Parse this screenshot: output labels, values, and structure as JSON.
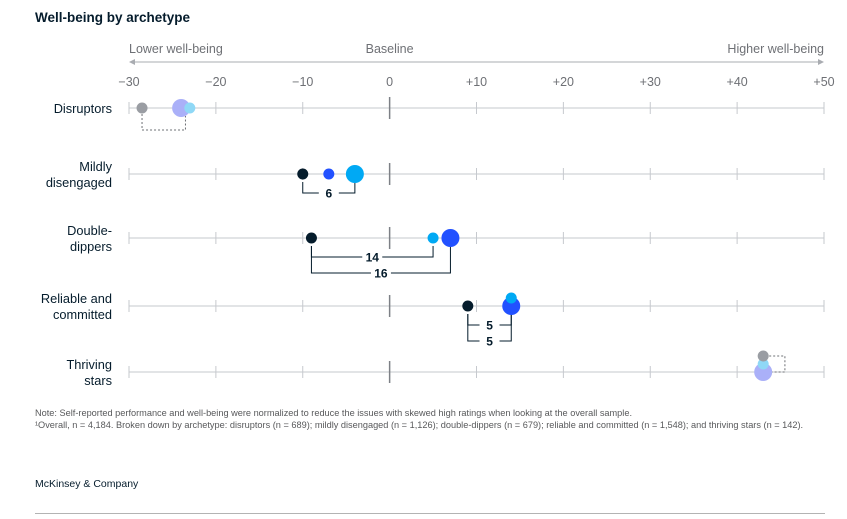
{
  "title": "Well-being by archetype",
  "scale_labels": {
    "left": "Lower well-being",
    "center": "Baseline",
    "right": "Higher well-being"
  },
  "note": "Note: Self-reported performance and well-being were normalized to reduce the issues with skewed high ratings when looking at the overall sample.",
  "footnote": "¹Overall, n = 4,184. Broken down by archetype: disruptors (n = 689); mildly disengaged (n = 1,126); double-dippers (n = 679); reliable and committed (n = 1,548); and thriving stars (n = 142).",
  "source": "McKinsey & Company",
  "colors": {
    "dark": "#051c2c",
    "blue": "#2251ff",
    "cyan": "#00a9f4",
    "gray": "#9a9da3",
    "lavender": "#aab0f8",
    "lightcyan": "#8fd8f6",
    "axis": "#c6c9ce",
    "tick_text": "#6e7075"
  },
  "chart_data": {
    "type": "scatter",
    "xlim": [
      -30,
      50
    ],
    "xticks": [
      {
        "value": -30,
        "label": "−30"
      },
      {
        "value": -20,
        "label": "−20"
      },
      {
        "value": -10,
        "label": "−10"
      },
      {
        "value": 0,
        "label": "0"
      },
      {
        "value": 10,
        "label": "+10"
      },
      {
        "value": 20,
        "label": "+20"
      },
      {
        "value": 30,
        "label": "+30"
      },
      {
        "value": 40,
        "label": "+40"
      },
      {
        "value": 50,
        "label": "+50"
      }
    ],
    "rows": [
      {
        "label": [
          "Disruptors"
        ],
        "points": [
          {
            "x": -28.5,
            "color": "gray",
            "size": "small"
          },
          {
            "x": -24,
            "color": "lavender",
            "size": "large"
          },
          {
            "x": -23,
            "color": "lightcyan",
            "size": "small"
          }
        ],
        "brackets": [
          {
            "from": -28.5,
            "to": -23.5,
            "label": "",
            "dotted": true
          }
        ]
      },
      {
        "label": [
          "Mildly",
          "disengaged"
        ],
        "points": [
          {
            "x": -10,
            "color": "dark",
            "size": "small"
          },
          {
            "x": -7,
            "color": "blue",
            "size": "small"
          },
          {
            "x": -4,
            "color": "cyan",
            "size": "large"
          }
        ],
        "brackets": [
          {
            "from": -10,
            "to": -4,
            "label": "6",
            "dotted": false
          }
        ]
      },
      {
        "label": [
          "Double-",
          "dippers"
        ],
        "points": [
          {
            "x": -9,
            "color": "dark",
            "size": "small"
          },
          {
            "x": 5,
            "color": "cyan",
            "size": "small"
          },
          {
            "x": 7,
            "color": "blue",
            "size": "large"
          }
        ],
        "brackets": [
          {
            "from": -9,
            "to": 5,
            "label": "14",
            "dotted": false
          },
          {
            "from": -9,
            "to": 7,
            "label": "16",
            "dotted": false
          }
        ]
      },
      {
        "label": [
          "Reliable and",
          "committed"
        ],
        "points": [
          {
            "x": 9,
            "color": "dark",
            "size": "small"
          },
          {
            "x": 14,
            "color": "blue",
            "size": "large"
          },
          {
            "x": 14,
            "color": "cyan",
            "size": "small",
            "dy": -8
          }
        ],
        "brackets": [
          {
            "from": 9,
            "to": 14,
            "label": "5",
            "dotted": false
          },
          {
            "from": 9,
            "to": 14,
            "label": "5",
            "dotted": false
          }
        ]
      },
      {
        "label": [
          "Thriving",
          "stars"
        ],
        "points": [
          {
            "x": 43,
            "color": "lavender",
            "size": "large"
          },
          {
            "x": 43,
            "color": "lightcyan",
            "size": "small",
            "dy": -8
          },
          {
            "x": 43,
            "color": "gray",
            "size": "small",
            "dy": -16
          }
        ],
        "brackets": [
          {
            "from": 43,
            "to": 45.5,
            "label": "",
            "dotted": true,
            "side": "right"
          }
        ]
      }
    ]
  }
}
